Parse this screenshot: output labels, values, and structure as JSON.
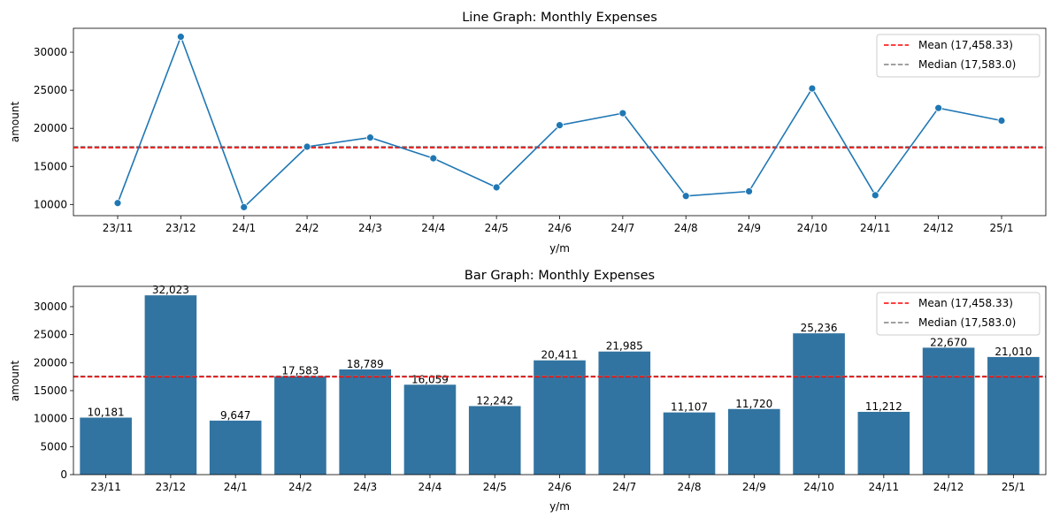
{
  "chart_data": [
    {
      "type": "line",
      "title": "Line Graph: Monthly Expenses",
      "xlabel": "y/m",
      "ylabel": "amount",
      "categories": [
        "23/11",
        "23/12",
        "24/1",
        "24/2",
        "24/3",
        "24/4",
        "24/5",
        "24/6",
        "24/7",
        "24/8",
        "24/9",
        "24/10",
        "24/11",
        "24/12",
        "25/1"
      ],
      "values": [
        10181,
        32023,
        9647,
        17583,
        18789,
        16059,
        12242,
        20411,
        21985,
        11107,
        11720,
        25236,
        11212,
        22670,
        21010
      ],
      "ylim": [
        8528,
        33142
      ],
      "yticks": [
        10000,
        15000,
        20000,
        25000,
        30000
      ],
      "ytick_labels": [
        "10000",
        "15000",
        "20000",
        "25000",
        "30000"
      ],
      "series_color": "#1f77b4",
      "reference_lines": [
        {
          "label": "Mean (17,458.33)",
          "value": 17458.33,
          "color": "#ff0000"
        },
        {
          "label": "Median (17,583.0)",
          "value": 17583.0,
          "color": "#808080"
        }
      ],
      "legend_position": "top-right"
    },
    {
      "type": "bar",
      "title": "Bar Graph: Monthly Expenses",
      "xlabel": "y/m",
      "ylabel": "amount",
      "categories": [
        "23/11",
        "23/12",
        "24/1",
        "24/2",
        "24/3",
        "24/4",
        "24/5",
        "24/6",
        "24/7",
        "24/8",
        "24/9",
        "24/10",
        "24/11",
        "24/12",
        "25/1"
      ],
      "values": [
        10181,
        32023,
        9647,
        17583,
        18789,
        16059,
        12242,
        20411,
        21985,
        11107,
        11720,
        25236,
        11212,
        22670,
        21010
      ],
      "data_labels": [
        "10,181",
        "32,023",
        "9,647",
        "17,583",
        "18,789",
        "16,059",
        "12,242",
        "20,411",
        "21,985",
        "11,107",
        "11,720",
        "25,236",
        "11,212",
        "22,670",
        "21,010"
      ],
      "ylim": [
        0,
        33624
      ],
      "yticks": [
        0,
        5000,
        10000,
        15000,
        20000,
        25000,
        30000
      ],
      "ytick_labels": [
        "0",
        "5000",
        "10000",
        "15000",
        "20000",
        "25000",
        "30000"
      ],
      "bar_color": "#3274a1",
      "reference_lines": [
        {
          "label": "Mean (17,458.33)",
          "value": 17458.33,
          "color": "#ff0000"
        },
        {
          "label": "Median (17,583.0)",
          "value": 17583.0,
          "color": "#808080"
        }
      ],
      "legend_position": "top-right"
    }
  ]
}
